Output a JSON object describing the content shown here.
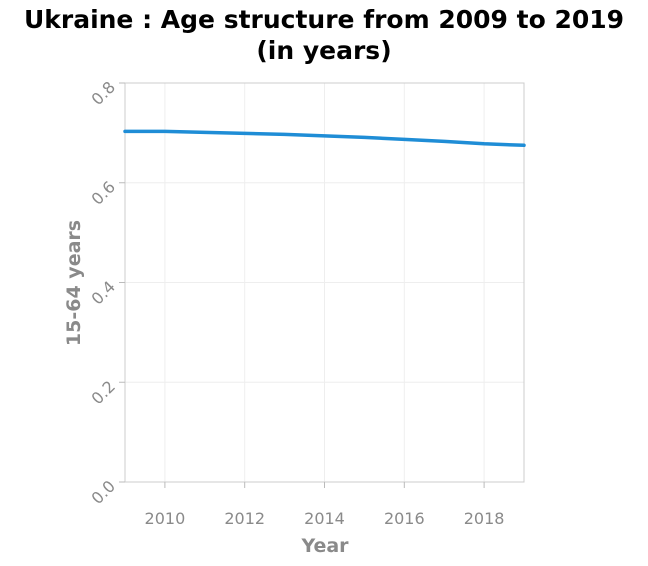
{
  "chart_data": {
    "type": "line",
    "title_line1": "Ukraine : Age structure from 2009 to 2019",
    "title_line2": "(in years)",
    "xlabel": "Year",
    "ylabel": "15-64 years",
    "xlim": [
      2009,
      2019
    ],
    "ylim": [
      0,
      0.8
    ],
    "xticks": [
      2010,
      2012,
      2014,
      2016,
      2018
    ],
    "yticks": [
      "0.0",
      "0.2",
      "0.4",
      "0.6",
      "0.8"
    ],
    "grid": true,
    "series": [
      {
        "color": "#1f8dd6",
        "x": [
          2009,
          2010,
          2011,
          2012,
          2013,
          2014,
          2015,
          2016,
          2017,
          2018,
          2019
        ],
        "y": [
          0.703,
          0.703,
          0.701,
          0.699,
          0.697,
          0.694,
          0.691,
          0.687,
          0.683,
          0.678,
          0.675
        ]
      }
    ]
  }
}
